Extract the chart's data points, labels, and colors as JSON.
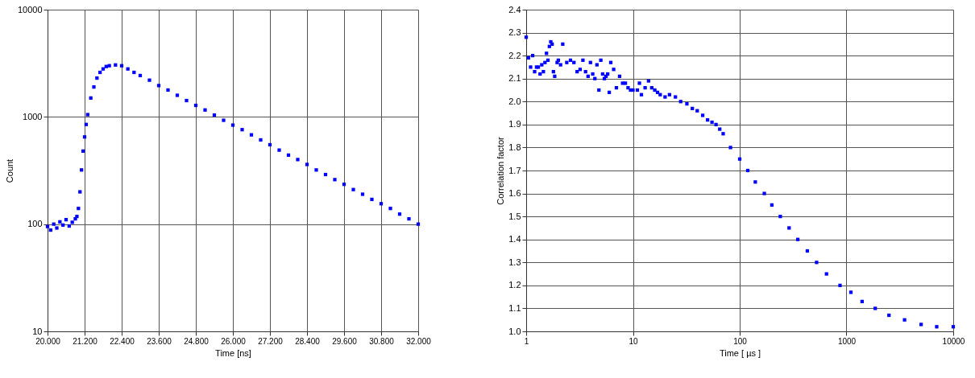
{
  "chart_data": [
    {
      "type": "scatter",
      "xlabel": "Time [ns]",
      "ylabel": "Count",
      "log": "y",
      "grid": true,
      "marker": "square",
      "xlim": [
        20,
        32
      ],
      "ylim": [
        10,
        10000
      ],
      "xticks": [
        {
          "value": 20,
          "label": "20.000"
        },
        {
          "value": 21.2,
          "label": "21.200"
        },
        {
          "value": 22.4,
          "label": "22.400"
        },
        {
          "value": 23.6,
          "label": "23.600"
        },
        {
          "value": 24.8,
          "label": "24.800"
        },
        {
          "value": 26,
          "label": "26.000"
        },
        {
          "value": 27.2,
          "label": "27.200"
        },
        {
          "value": 28.4,
          "label": "28.400"
        },
        {
          "value": 29.6,
          "label": "29.600"
        },
        {
          "value": 30.8,
          "label": "30.800"
        },
        {
          "value": 32,
          "label": "32.000"
        }
      ],
      "yticks": [
        10,
        100,
        1000,
        10000
      ],
      "series": [
        {
          "color": "#0000ff",
          "x": [
            20.0,
            20.1,
            20.2,
            20.3,
            20.4,
            20.5,
            20.6,
            20.7,
            20.8,
            20.9,
            20.95,
            21.0,
            21.05,
            21.1,
            21.15,
            21.2,
            21.25,
            21.3,
            21.4,
            21.5,
            21.6,
            21.7,
            21.8,
            21.9,
            22.0,
            22.2,
            22.4,
            22.6,
            22.8,
            23.0,
            23.3,
            23.6,
            23.9,
            24.2,
            24.5,
            24.8,
            25.1,
            25.4,
            25.7,
            26.0,
            26.3,
            26.6,
            26.9,
            27.2,
            27.5,
            27.8,
            28.1,
            28.4,
            28.7,
            29.0,
            29.3,
            29.6,
            29.9,
            30.2,
            30.5,
            30.8,
            31.1,
            31.4,
            31.7,
            32.0
          ],
          "values": [
            95,
            88,
            100,
            92,
            105,
            98,
            110,
            96,
            104,
            112,
            118,
            140,
            200,
            320,
            480,
            650,
            850,
            1050,
            1500,
            1900,
            2300,
            2600,
            2800,
            2950,
            3000,
            3050,
            3000,
            2800,
            2600,
            2430,
            2200,
            1960,
            1780,
            1590,
            1420,
            1280,
            1160,
            1040,
            930,
            838,
            760,
            680,
            610,
            550,
            490,
            440,
            400,
            360,
            320,
            290,
            260,
            235,
            210,
            190,
            170,
            155,
            140,
            124,
            112,
            100
          ]
        }
      ]
    },
    {
      "type": "scatter",
      "xlabel": "Time [ µs ]",
      "ylabel": "Correlation factor",
      "log": "x",
      "grid": true,
      "marker": "square",
      "xlim": [
        1,
        10000
      ],
      "ylim": [
        1.0,
        2.4
      ],
      "xticks": [
        1,
        10,
        100,
        1000,
        10000
      ],
      "yticks": [
        {
          "value": 1.0,
          "label": "1.0"
        },
        1.1,
        1.2,
        1.3,
        1.4,
        1.5,
        1.6,
        1.7,
        1.8,
        1.9,
        {
          "value": 2.0,
          "label": "2.0"
        },
        2.1,
        2.2,
        2.3,
        2.4
      ],
      "series": [
        {
          "color": "#0000ff",
          "x": [
            1,
            1.05,
            1.1,
            1.15,
            1.2,
            1.25,
            1.3,
            1.35,
            1.4,
            1.45,
            1.5,
            1.55,
            1.6,
            1.65,
            1.7,
            1.75,
            1.8,
            1.85,
            1.95,
            2.0,
            2.1,
            2.2,
            2.4,
            2.6,
            2.8,
            3.0,
            3.2,
            3.4,
            3.6,
            3.8,
            4.0,
            4.2,
            4.4,
            4.6,
            4.8,
            5.0,
            5.2,
            5.4,
            5.6,
            5.8,
            6.0,
            6.2,
            6.6,
            7.0,
            7.5,
            8.0,
            8.5,
            9.0,
            9.5,
            10,
            11,
            11.5,
            12,
            13,
            14,
            15,
            16,
            17,
            18,
            20,
            22,
            25,
            28,
            32,
            36,
            40,
            45,
            50,
            55,
            60,
            65,
            70,
            82,
            100,
            119,
            140,
            170,
            200,
            240,
            290,
            350,
            430,
            525,
            650,
            870,
            1100,
            1400,
            1860,
            2500,
            3500,
            5000,
            7000,
            10000
          ],
          "values": [
            2.28,
            2.19,
            2.15,
            2.2,
            2.13,
            2.15,
            2.15,
            2.12,
            2.16,
            2.13,
            2.17,
            2.21,
            2.18,
            2.24,
            2.26,
            2.25,
            2.13,
            2.11,
            2.17,
            2.18,
            2.16,
            2.25,
            2.17,
            2.18,
            2.17,
            2.13,
            2.14,
            2.18,
            2.13,
            2.11,
            2.17,
            2.12,
            2.1,
            2.16,
            2.05,
            2.18,
            2.12,
            2.1,
            2.11,
            2.12,
            2.04,
            2.17,
            2.14,
            2.06,
            2.11,
            2.08,
            2.08,
            2.06,
            2.05,
            2.05,
            2.05,
            2.08,
            2.03,
            2.06,
            2.09,
            2.06,
            2.05,
            2.04,
            2.03,
            2.02,
            2.03,
            2.02,
            2.0,
            1.99,
            1.97,
            1.96,
            1.94,
            1.92,
            1.91,
            1.9,
            1.88,
            1.86,
            1.8,
            1.75,
            1.7,
            1.65,
            1.6,
            1.55,
            1.5,
            1.45,
            1.4,
            1.35,
            1.3,
            1.25,
            1.2,
            1.17,
            1.13,
            1.1,
            1.07,
            1.05,
            1.03,
            1.02,
            1.02
          ]
        }
      ]
    }
  ]
}
